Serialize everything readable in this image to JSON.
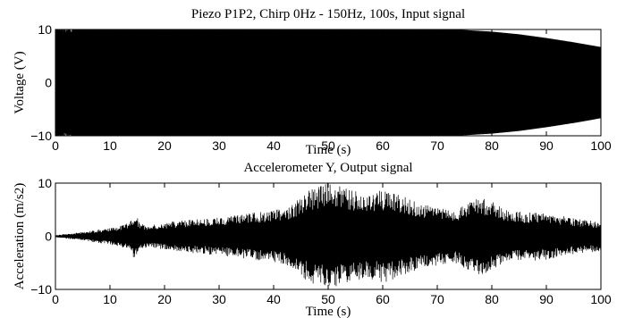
{
  "chart_data": [
    {
      "type": "line",
      "title": "Piezo P1P2, Chirp 0Hz - 150Hz, 100s, Input signal",
      "xlabel": "Time (s)",
      "ylabel": "Voltage (V)",
      "xlim": [
        0,
        100
      ],
      "ylim": [
        -10,
        10
      ],
      "xticks": [
        0,
        10,
        20,
        30,
        40,
        50,
        60,
        70,
        80,
        90,
        100
      ],
      "yticks": [
        -10,
        0,
        10
      ],
      "series": [
        {
          "x": [
            0,
            10,
            20,
            30,
            40,
            50,
            60,
            70,
            75,
            80,
            85,
            90,
            95,
            100
          ],
          "amplitude": [
            10,
            10,
            10,
            10,
            10,
            10,
            10,
            10,
            9.9,
            9.6,
            9.1,
            8.4,
            7.6,
            6.7
          ],
          "color": "#000000"
        }
      ]
    },
    {
      "type": "line",
      "title": "Accelerometer Y, Output signal",
      "xlabel": "Time (s)",
      "ylabel": "Acceleration (m/s2)",
      "xlim": [
        0,
        100
      ],
      "ylim": [
        -10,
        10
      ],
      "xticks": [
        0,
        10,
        20,
        30,
        40,
        50,
        60,
        70,
        80,
        90,
        100
      ],
      "yticks": [
        -10,
        0,
        10
      ],
      "series": [
        {
          "x": [
            0,
            5,
            10,
            12,
            13.5,
            14.5,
            15.5,
            17,
            20,
            25,
            30,
            35,
            40,
            43,
            45,
            47,
            50,
            52,
            55,
            57,
            60,
            62,
            65,
            67,
            70,
            73,
            76,
            78,
            80,
            82,
            84,
            86,
            88,
            90,
            92,
            94,
            96,
            98,
            100
          ],
          "amplitude": [
            0.2,
            0.8,
            1.6,
            2.0,
            2.5,
            4.5,
            2.5,
            2.0,
            2.6,
            3.2,
            3.6,
            4.2,
            5.0,
            5.6,
            7.5,
            9.0,
            10.0,
            9.6,
            8.5,
            7.8,
            8.8,
            8.2,
            7.0,
            6.0,
            5.5,
            5.0,
            6.5,
            7.5,
            6.8,
            5.2,
            4.8,
            4.5,
            4.6,
            4.4,
            4.0,
            3.6,
            3.2,
            3.0,
            2.8
          ],
          "color": "#000000"
        }
      ]
    }
  ]
}
